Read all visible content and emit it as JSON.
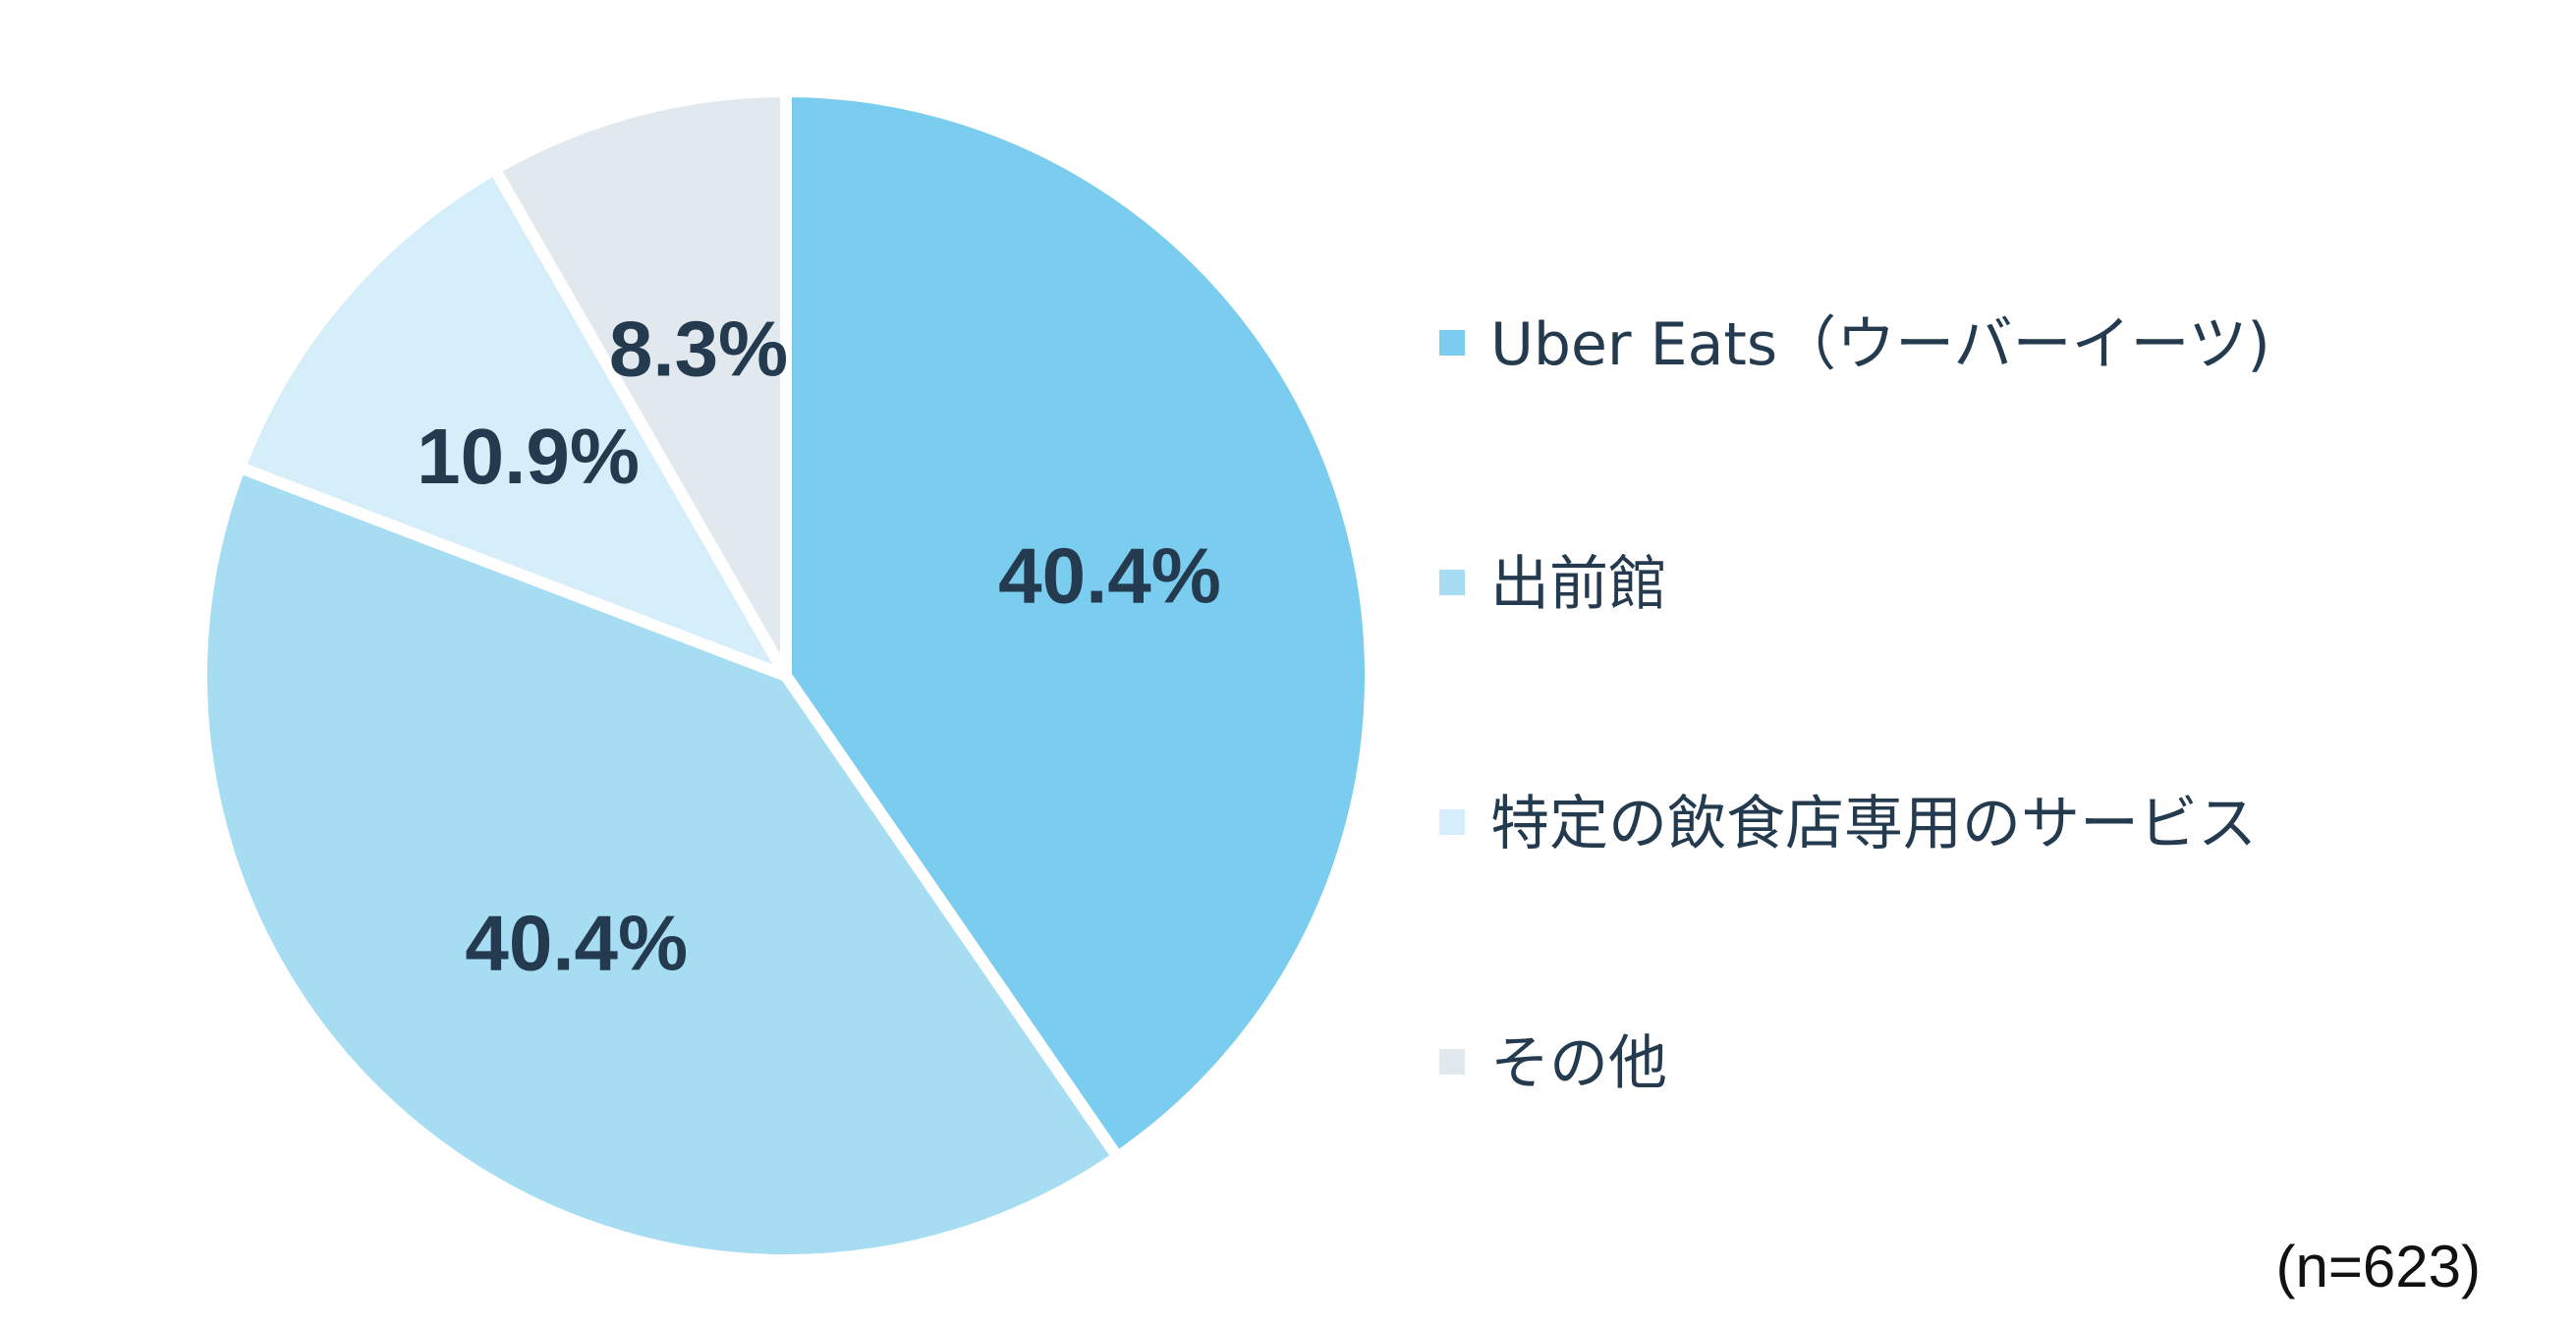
{
  "chart_data": {
    "type": "pie",
    "slices": [
      {
        "name": "Uber Eats（ウーバーイーツ)",
        "value": 40.4,
        "label": "40.4%",
        "color": "#7acdee"
      },
      {
        "name": "出前館",
        "value": 40.4,
        "label": "40.4%",
        "color": "#a6ddf3"
      },
      {
        "name": "特定の飲食店専用のサービス",
        "value": 10.9,
        "label": "10.9%",
        "color": "#d5eef9"
      },
      {
        "name": "その他",
        "value": 8.3,
        "label": "8.3%",
        "color": "#e2e9ee"
      }
    ],
    "start_angle_deg": 0,
    "direction": "clockwise",
    "separator_color": "#ffffff",
    "legend_position": "right",
    "note": "(n=623)"
  }
}
